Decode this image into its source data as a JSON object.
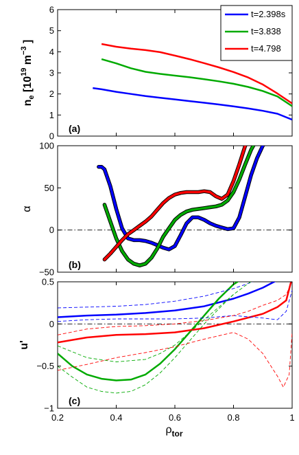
{
  "chart_data": [
    {
      "type": "line",
      "panel_label": "(a)",
      "ylabel": "n_e [10^19 m^-3]",
      "ylabel_parts": {
        "main": "n",
        "sub": "e",
        "open": " [10",
        "sup1": "19",
        "mid": " m",
        "sup2": "−3",
        "close": " ]"
      },
      "xlim": [
        0.2,
        1.0
      ],
      "ylim": [
        0,
        6
      ],
      "yticks": [
        "0",
        "1",
        "2",
        "3",
        "4",
        "5",
        "6"
      ],
      "grid": false,
      "legend": "top-right",
      "series": [
        {
          "name": "t=2.398s",
          "color": "#0000ff",
          "x": [
            0.32,
            0.35,
            0.4,
            0.45,
            0.5,
            0.55,
            0.6,
            0.65,
            0.7,
            0.75,
            0.8,
            0.85,
            0.9,
            0.95,
            1.0
          ],
          "y": [
            2.28,
            2.22,
            2.1,
            2.0,
            1.9,
            1.82,
            1.74,
            1.66,
            1.58,
            1.5,
            1.41,
            1.31,
            1.2,
            1.06,
            0.78
          ]
        },
        {
          "name": "t=3.838",
          "color": "#00aa00",
          "x": [
            0.35,
            0.4,
            0.45,
            0.5,
            0.55,
            0.6,
            0.65,
            0.7,
            0.75,
            0.8,
            0.85,
            0.9,
            0.95,
            1.0
          ],
          "y": [
            3.65,
            3.45,
            3.22,
            3.05,
            2.95,
            2.87,
            2.79,
            2.7,
            2.6,
            2.48,
            2.33,
            2.14,
            1.88,
            1.42
          ]
        },
        {
          "name": "t=4.798",
          "color": "#ff0000",
          "x": [
            0.35,
            0.4,
            0.45,
            0.5,
            0.55,
            0.6,
            0.65,
            0.7,
            0.75,
            0.8,
            0.85,
            0.9,
            0.95,
            1.0
          ],
          "y": [
            4.37,
            4.24,
            4.15,
            4.08,
            3.98,
            3.82,
            3.65,
            3.46,
            3.26,
            3.04,
            2.78,
            2.45,
            2.02,
            1.55
          ]
        }
      ]
    },
    {
      "type": "line",
      "panel_label": "(b)",
      "ylabel": "α",
      "xlim": [
        0.2,
        1.0
      ],
      "ylim": [
        -50,
        100
      ],
      "yticks": [
        "−50",
        "0",
        "50",
        "100"
      ],
      "grid": false,
      "reference_line": {
        "y": 0,
        "style": "dash-dot"
      },
      "series": [
        {
          "name": "t=2.398s",
          "color": "#0000ff",
          "x": [
            0.34,
            0.35,
            0.36,
            0.38,
            0.4,
            0.42,
            0.44,
            0.46,
            0.48,
            0.5,
            0.52,
            0.54,
            0.56,
            0.58,
            0.6,
            0.62,
            0.64,
            0.66,
            0.68,
            0.7,
            0.72,
            0.74,
            0.76,
            0.78,
            0.8,
            0.82,
            0.84,
            0.86,
            0.88,
            0.9,
            0.92
          ],
          "y": [
            75,
            75,
            72,
            52,
            25,
            2,
            -10,
            -12,
            -12,
            -13,
            -15,
            -18,
            -21,
            -23,
            -19,
            -6,
            8,
            15,
            15,
            12,
            8,
            5,
            3,
            1,
            2,
            15,
            40,
            65,
            85,
            100,
            108
          ]
        },
        {
          "name": "t=3.838",
          "color": "#00aa00",
          "x": [
            0.36,
            0.38,
            0.4,
            0.42,
            0.44,
            0.46,
            0.48,
            0.5,
            0.52,
            0.54,
            0.56,
            0.58,
            0.6,
            0.62,
            0.64,
            0.66,
            0.68,
            0.7,
            0.72,
            0.74,
            0.76,
            0.78,
            0.8,
            0.82,
            0.84,
            0.86,
            0.88,
            0.9
          ],
          "y": [
            30,
            10,
            -10,
            -25,
            -35,
            -40,
            -42,
            -40,
            -33,
            -22,
            -8,
            2,
            12,
            18,
            22,
            24,
            25,
            26,
            27,
            28,
            30,
            35,
            45,
            60,
            78,
            95,
            108,
            115
          ]
        },
        {
          "name": "t=4.798",
          "color": "#ff0000",
          "x": [
            0.36,
            0.38,
            0.4,
            0.42,
            0.44,
            0.46,
            0.48,
            0.5,
            0.52,
            0.54,
            0.56,
            0.58,
            0.6,
            0.62,
            0.64,
            0.66,
            0.68,
            0.7,
            0.72,
            0.74,
            0.76,
            0.78,
            0.8,
            0.82,
            0.84,
            0.86
          ],
          "y": [
            -35,
            -28,
            -20,
            -12,
            -5,
            0,
            5,
            10,
            16,
            24,
            32,
            38,
            42,
            44,
            45,
            45,
            45,
            46,
            45,
            40,
            37,
            42,
            58,
            78,
            100,
            110
          ]
        }
      ]
    },
    {
      "type": "line",
      "panel_label": "(c)",
      "ylabel": "u'",
      "xlabel": "ρ_tor",
      "xlabel_parts": {
        "main": "ρ",
        "sub": "tor"
      },
      "xlim": [
        0.2,
        1.0
      ],
      "ylim": [
        -1,
        0.5
      ],
      "xticks": [
        "0.2",
        "0.4",
        "0.6",
        "0.8",
        "1"
      ],
      "yticks": [
        "−1",
        "−0.5",
        "0",
        "0.5"
      ],
      "grid": false,
      "reference_line": {
        "y": 0,
        "style": "dash-dot"
      },
      "series": [
        {
          "name": "t=2.398s",
          "color": "#0000ff",
          "style": "solid",
          "x": [
            0.2,
            0.3,
            0.4,
            0.5,
            0.6,
            0.7,
            0.8,
            0.85,
            0.9,
            0.95
          ],
          "y": [
            0.08,
            0.1,
            0.11,
            0.13,
            0.16,
            0.21,
            0.3,
            0.36,
            0.43,
            0.52
          ]
        },
        {
          "name": "t=3.838",
          "color": "#00aa00",
          "style": "solid",
          "x": [
            0.2,
            0.25,
            0.3,
            0.35,
            0.4,
            0.45,
            0.5,
            0.55,
            0.6,
            0.65,
            0.7,
            0.75,
            0.8,
            0.85
          ],
          "y": [
            -0.35,
            -0.5,
            -0.6,
            -0.65,
            -0.67,
            -0.66,
            -0.6,
            -0.47,
            -0.3,
            -0.1,
            0.1,
            0.3,
            0.47,
            0.58
          ]
        },
        {
          "name": "t=4.798",
          "color": "#ff0000",
          "style": "solid",
          "x": [
            0.2,
            0.3,
            0.4,
            0.5,
            0.6,
            0.7,
            0.8,
            0.9,
            0.95,
            0.98,
            1.0
          ],
          "y": [
            -0.22,
            -0.16,
            -0.13,
            -0.12,
            -0.1,
            -0.05,
            0.03,
            0.12,
            0.2,
            0.28,
            0.55
          ]
        },
        {
          "name": "",
          "color": "#0000ff",
          "style": "dashed",
          "x": [
            0.2,
            0.3,
            0.4,
            0.5,
            0.6,
            0.7,
            0.8,
            0.85,
            0.9
          ],
          "y": [
            0.19,
            0.2,
            0.21,
            0.23,
            0.27,
            0.33,
            0.42,
            0.48,
            0.55
          ]
        },
        {
          "name": "",
          "color": "#0000ff",
          "style": "dashed",
          "x": [
            0.2,
            0.3,
            0.4,
            0.5,
            0.6,
            0.7,
            0.8,
            0.9,
            0.95,
            0.98,
            1.0
          ],
          "y": [
            0.03,
            0.05,
            0.06,
            0.06,
            0.06,
            0.07,
            0.1,
            0.07,
            0.05,
            0.15,
            0.4
          ]
        },
        {
          "name": "",
          "color": "#00aa00",
          "style": "dashed",
          "x": [
            0.2,
            0.3,
            0.4,
            0.5,
            0.55,
            0.6,
            0.65,
            0.7,
            0.75,
            0.8
          ],
          "y": [
            -0.26,
            -0.4,
            -0.45,
            -0.42,
            -0.35,
            -0.25,
            -0.1,
            0.05,
            0.2,
            0.35
          ]
        },
        {
          "name": "",
          "color": "#00aa00",
          "style": "dashed",
          "x": [
            0.2,
            0.25,
            0.3,
            0.35,
            0.4,
            0.45,
            0.5,
            0.55,
            0.6,
            0.65,
            0.7,
            0.75,
            0.8,
            0.85,
            0.9
          ],
          "y": [
            -0.5,
            -0.63,
            -0.75,
            -0.8,
            -0.82,
            -0.8,
            -0.72,
            -0.58,
            -0.4,
            -0.2,
            0.0,
            0.18,
            0.35,
            0.48,
            0.6
          ]
        },
        {
          "name": "",
          "color": "#ff0000",
          "style": "dashed",
          "x": [
            0.2,
            0.3,
            0.4,
            0.5,
            0.6,
            0.7,
            0.8,
            0.85,
            0.9,
            0.95,
            0.98,
            1.0
          ],
          "y": [
            -0.13,
            -0.06,
            -0.03,
            -0.02,
            0.0,
            0.04,
            0.1,
            0.15,
            0.22,
            0.28,
            0.35,
            0.5
          ]
        },
        {
          "name": "",
          "color": "#ff0000",
          "style": "dashed",
          "x": [
            0.2,
            0.3,
            0.4,
            0.5,
            0.6,
            0.7,
            0.8,
            0.85,
            0.9,
            0.95,
            0.97,
            0.99,
            1.0
          ],
          "y": [
            -0.55,
            -0.48,
            -0.4,
            -0.34,
            -0.27,
            -0.18,
            -0.1,
            -0.18,
            -0.35,
            -0.62,
            -0.75,
            -0.6,
            -0.1
          ]
        }
      ]
    }
  ]
}
